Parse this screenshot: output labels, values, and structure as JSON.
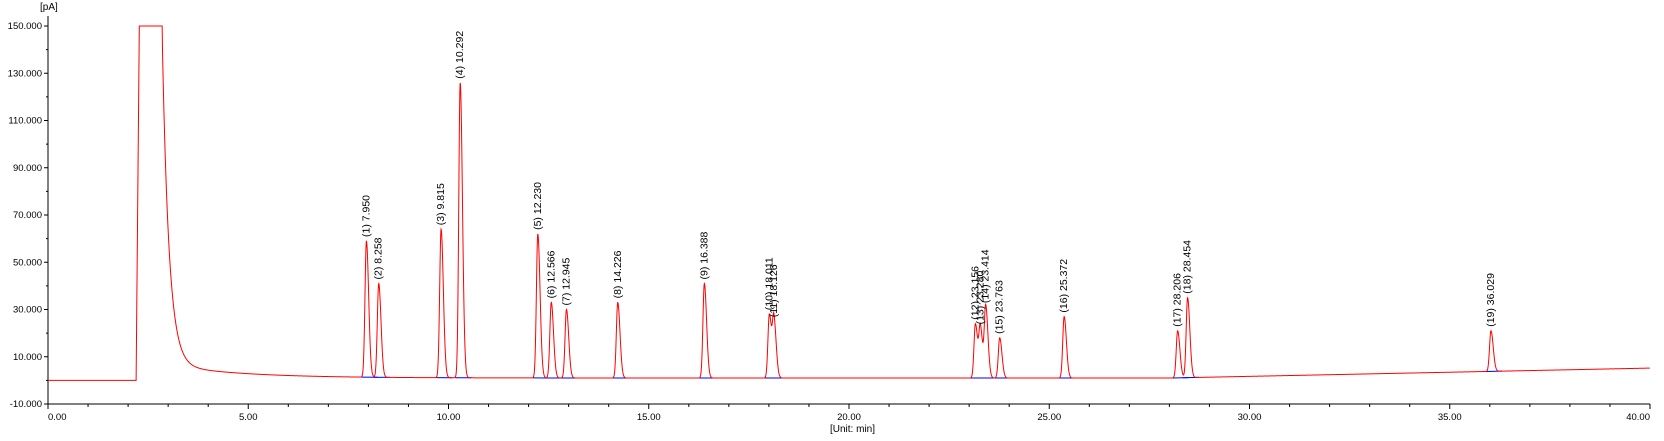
{
  "chart_data": {
    "type": "line",
    "title": "",
    "xlabel": "[Unit: min]",
    "ylabel": "[pA]",
    "xlim": [
      0,
      40
    ],
    "ylim": [
      -10,
      150
    ],
    "x_ticks": [
      "0.00",
      "5.00",
      "10.00",
      "15.00",
      "20.00",
      "25.00",
      "30.00",
      "35.00",
      "40.00"
    ],
    "x_tick_values": [
      0,
      5,
      10,
      15,
      20,
      25,
      30,
      35,
      40
    ],
    "y_ticks": [
      "-10.000",
      "10.000",
      "30.000",
      "50.000",
      "70.000",
      "90.000",
      "110.000",
      "130.000",
      "150.000"
    ],
    "y_tick_values": [
      -10,
      10,
      30,
      50,
      70,
      90,
      110,
      130,
      150
    ],
    "grid": false,
    "colors": {
      "signal": "#ff0000",
      "baseline": "#0000ff",
      "axis": "#000000",
      "label": "#000000"
    },
    "solvent_front": {
      "start": 2.28,
      "end": 2.85,
      "top": 150
    },
    "baseline_levels": [
      [
        0,
        0
      ],
      [
        2.2,
        0
      ],
      [
        2.3,
        150
      ],
      [
        2.85,
        150
      ],
      [
        3.5,
        18
      ],
      [
        5,
        6
      ],
      [
        8,
        3.2
      ],
      [
        10,
        2.8
      ],
      [
        13,
        1.6
      ],
      [
        20,
        1
      ],
      [
        25,
        1
      ],
      [
        30,
        1.5
      ],
      [
        35,
        3.5
      ],
      [
        40,
        5
      ]
    ],
    "peaks": [
      {
        "label": "(1) 7.950",
        "rt": 7.95,
        "height": 59
      },
      {
        "label": "(2) 8.258",
        "rt": 8.258,
        "height": 41
      },
      {
        "label": "(3) 9.815",
        "rt": 9.815,
        "height": 64
      },
      {
        "label": "(4) 10.292",
        "rt": 10.292,
        "height": 126
      },
      {
        "label": "(5) 12.230",
        "rt": 12.23,
        "height": 62
      },
      {
        "label": "(6) 12.566",
        "rt": 12.566,
        "height": 33
      },
      {
        "label": "(7) 12.945",
        "rt": 12.945,
        "height": 30
      },
      {
        "label": "(8) 14.226",
        "rt": 14.226,
        "height": 33
      },
      {
        "label": "(9) 16.388",
        "rt": 16.388,
        "height": 41
      },
      {
        "label": "(10) 18.011",
        "rt": 18.011,
        "height": 28
      },
      {
        "label": "(11) 18.126",
        "rt": 18.126,
        "height": 25
      },
      {
        "label": "(12) 23.156",
        "rt": 23.156,
        "height": 24
      },
      {
        "label": "(13) 23.280",
        "rt": 23.28,
        "height": 22
      },
      {
        "label": "(14) 23.414",
        "rt": 23.414,
        "height": 31
      },
      {
        "label": "(15) 23.763",
        "rt": 23.763,
        "height": 18
      },
      {
        "label": "(16) 25.372",
        "rt": 25.372,
        "height": 27
      },
      {
        "label": "(17) 28.206",
        "rt": 28.206,
        "height": 21
      },
      {
        "label": "(18) 28.454",
        "rt": 28.454,
        "height": 35
      },
      {
        "label": "(19) 36.029",
        "rt": 36.029,
        "height": 21
      }
    ]
  }
}
